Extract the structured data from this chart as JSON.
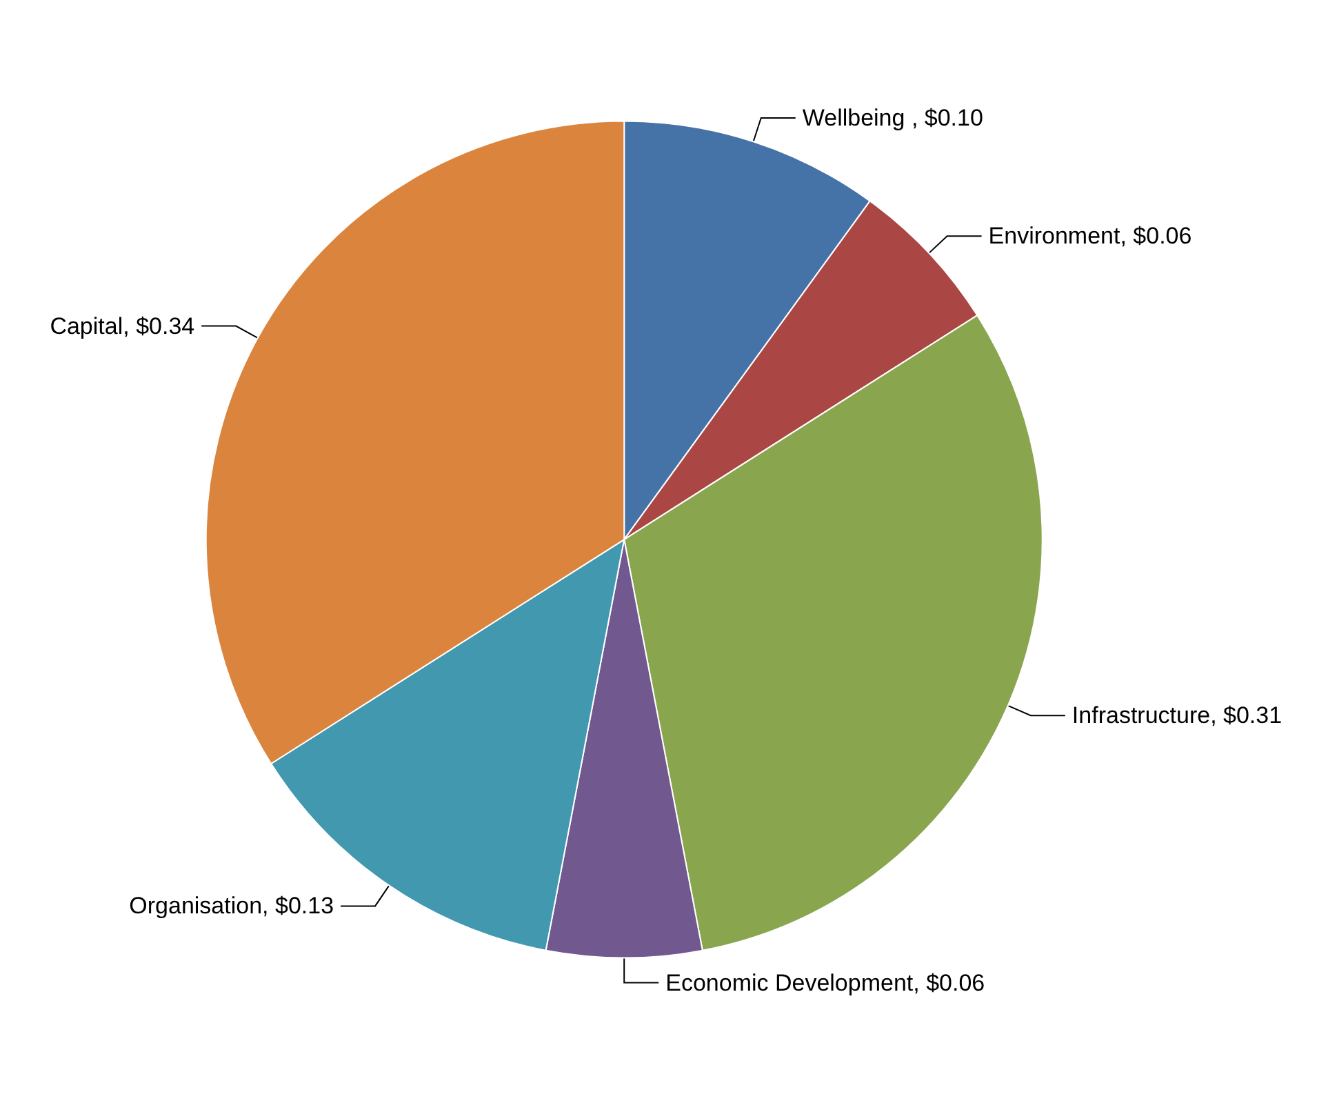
{
  "chart_data": {
    "type": "pie",
    "categories": [
      "Wellbeing ",
      "Environment",
      "Infrastructure",
      "Economic Development",
      "Organisation",
      "Capital"
    ],
    "values": [
      0.1,
      0.06,
      0.31,
      0.06,
      0.13,
      0.34
    ],
    "value_labels": [
      "$0.10",
      "$0.06",
      "$0.31",
      "$0.06",
      "$0.13",
      "$0.34"
    ],
    "colors": [
      "#4572a7",
      "#aa4643",
      "#89a54e",
      "#71588f",
      "#4198af",
      "#db843d"
    ],
    "legend": false
  }
}
